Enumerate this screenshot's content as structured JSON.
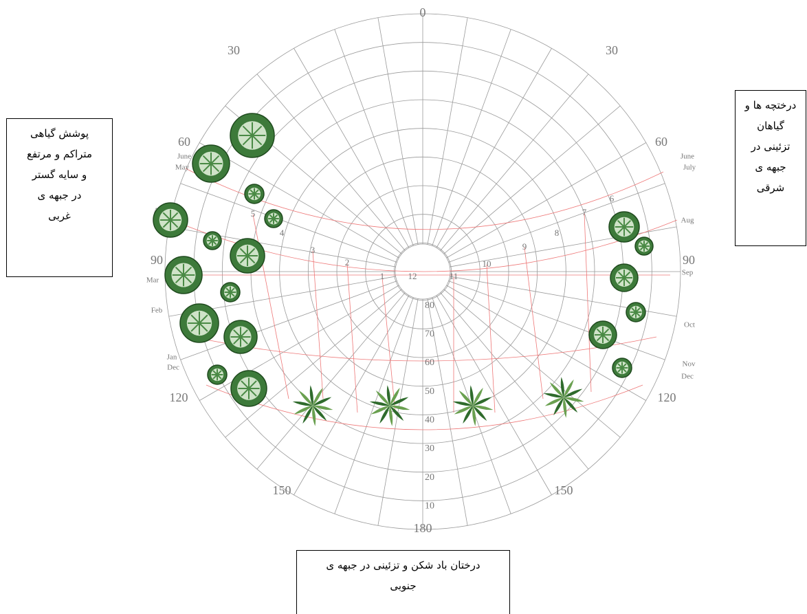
{
  "diagram": {
    "azimuth_top": "0",
    "azimuth_bottom": "180",
    "azimuth_left": [
      "30",
      "60",
      "90",
      "120",
      "150"
    ],
    "azimuth_right": [
      "30",
      "60",
      "90",
      "120",
      "150"
    ],
    "altitude_labels": [
      "80",
      "70",
      "60",
      "50",
      "40",
      "30",
      "20",
      "10"
    ],
    "hours_left": [
      "12",
      "1",
      "2",
      "3",
      "4",
      "5"
    ],
    "hours_right": [
      "11",
      "10",
      "9",
      "8",
      "7",
      "6"
    ],
    "months_left": [
      "June",
      "May",
      "Apr",
      "Mar",
      "Feb",
      "Jan",
      "Dec"
    ],
    "months_right": [
      "June",
      "July",
      "Aug",
      "Sep",
      "Oct",
      "Nov",
      "Dec"
    ]
  },
  "boxes": {
    "west": [
      "پوشش گیاهی",
      "متراکم و مرتفع",
      "و سایه گستر",
      "در جبهه ی",
      "غربی"
    ],
    "east": [
      "درختچه ها و",
      "گیاهان",
      "تزئینی در",
      "جبهه ی",
      "شرقی"
    ],
    "south": [
      "درختان باد شکن و تزئینی در جبهه ی",
      "جنوبی"
    ]
  }
}
